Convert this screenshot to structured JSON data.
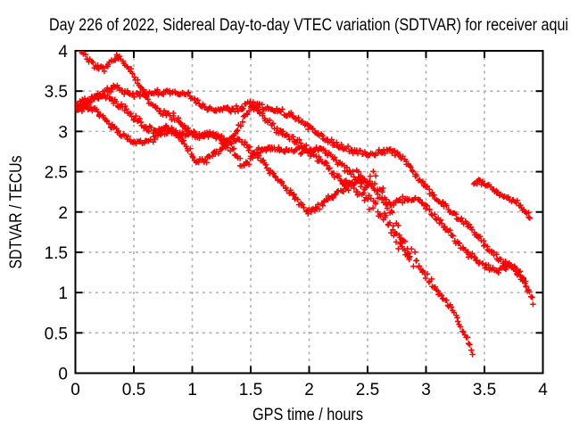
{
  "title": "Day 226 of 2022, Sidereal Day-to-day VTEC variation (SDTVAR) for receiver aqui",
  "colors": {
    "series": "#ff0000",
    "grid": "#b0b0b0",
    "frame": "#000000",
    "background": "#ffffff",
    "text": "#000000"
  },
  "chart_data": {
    "type": "scatter",
    "marker": "+",
    "title": "Day 226 of 2022, Sidereal Day-to-day VTEC variation (SDTVAR) for receiver aqui",
    "xlabel": "GPS time / hours",
    "ylabel": "SDTVAR / TECUs",
    "xlim": [
      0,
      4
    ],
    "ylim": [
      0,
      4
    ],
    "xticks": [
      0,
      0.5,
      1,
      1.5,
      2,
      2.5,
      3,
      3.5,
      4
    ],
    "yticks": [
      0,
      0.5,
      1,
      1.5,
      2,
      2.5,
      3,
      3.5,
      4
    ],
    "grid": true,
    "legend": "none",
    "series_color": "#ff0000",
    "series": [
      {
        "name": "trace-1",
        "noise": 0.03,
        "noise_extra": {
          "from": 2.36,
          "to": 2.95,
          "amp": 0.05
        },
        "seed": 42,
        "points": [
          [
            0.03,
            4.02
          ],
          [
            0.08,
            3.95
          ],
          [
            0.13,
            3.88
          ],
          [
            0.18,
            3.81
          ],
          [
            0.24,
            3.78
          ],
          [
            0.3,
            3.85
          ],
          [
            0.36,
            3.93
          ],
          [
            0.42,
            3.84
          ],
          [
            0.48,
            3.74
          ],
          [
            0.54,
            3.6
          ],
          [
            0.6,
            3.46
          ],
          [
            0.66,
            3.32
          ],
          [
            0.72,
            3.24
          ],
          [
            0.78,
            3.2
          ],
          [
            0.84,
            3.19
          ],
          [
            0.9,
            3.11
          ],
          [
            0.96,
            3.03
          ],
          [
            1.02,
            2.97
          ],
          [
            1.08,
            2.94
          ],
          [
            1.14,
            2.96
          ],
          [
            1.2,
            2.94
          ],
          [
            1.26,
            2.9
          ],
          [
            1.32,
            2.82
          ],
          [
            1.38,
            2.7
          ],
          [
            1.44,
            2.56
          ],
          [
            1.5,
            2.66
          ],
          [
            1.56,
            2.76
          ],
          [
            1.62,
            2.8
          ],
          [
            1.7,
            2.79
          ],
          [
            1.78,
            2.77
          ],
          [
            1.86,
            2.75
          ],
          [
            1.94,
            2.76
          ],
          [
            2.02,
            2.77
          ],
          [
            2.1,
            2.78
          ],
          [
            2.18,
            2.71
          ],
          [
            2.26,
            2.6
          ],
          [
            2.34,
            2.5
          ],
          [
            2.42,
            2.43
          ],
          [
            2.48,
            2.39
          ],
          [
            2.54,
            2.41
          ],
          [
            2.6,
            2.3
          ],
          [
            2.66,
            2.12
          ],
          [
            2.72,
            1.92
          ],
          [
            2.78,
            1.7
          ],
          [
            2.84,
            1.52
          ],
          [
            2.9,
            1.4
          ],
          [
            2.96,
            1.28
          ],
          [
            3.02,
            1.17
          ],
          [
            3.08,
            1.05
          ],
          [
            3.14,
            0.94
          ],
          [
            3.2,
            0.82
          ],
          [
            3.26,
            0.7
          ],
          [
            3.31,
            0.55
          ],
          [
            3.35,
            0.42
          ],
          [
            3.38,
            0.32
          ],
          [
            3.4,
            0.24
          ]
        ]
      },
      {
        "name": "trace-2",
        "noise": 0.026,
        "seed": 43,
        "points": [
          [
            0.0,
            3.3
          ],
          [
            0.06,
            3.33
          ],
          [
            0.12,
            3.37
          ],
          [
            0.18,
            3.42
          ],
          [
            0.24,
            3.47
          ],
          [
            0.3,
            3.52
          ],
          [
            0.35,
            3.56
          ],
          [
            0.4,
            3.51
          ],
          [
            0.46,
            3.46
          ],
          [
            0.52,
            3.44
          ],
          [
            0.6,
            3.46
          ],
          [
            0.68,
            3.48
          ],
          [
            0.76,
            3.49
          ],
          [
            0.84,
            3.48
          ],
          [
            0.92,
            3.47
          ],
          [
            0.98,
            3.44
          ],
          [
            1.04,
            3.36
          ],
          [
            1.1,
            3.29
          ],
          [
            1.16,
            3.27
          ],
          [
            1.24,
            3.27
          ],
          [
            1.3,
            3.29
          ],
          [
            1.36,
            3.27
          ],
          [
            1.42,
            3.3
          ],
          [
            1.48,
            3.35
          ],
          [
            1.54,
            3.33
          ],
          [
            1.6,
            3.3
          ],
          [
            1.68,
            3.27
          ],
          [
            1.76,
            3.24
          ],
          [
            1.84,
            3.21
          ],
          [
            1.92,
            3.13
          ],
          [
            2.0,
            3.04
          ],
          [
            2.08,
            2.96
          ],
          [
            2.16,
            2.89
          ],
          [
            2.24,
            2.84
          ],
          [
            2.32,
            2.79
          ],
          [
            2.4,
            2.75
          ],
          [
            2.48,
            2.72
          ],
          [
            2.56,
            2.72
          ],
          [
            2.64,
            2.74
          ],
          [
            2.7,
            2.76
          ],
          [
            2.76,
            2.73
          ],
          [
            2.82,
            2.63
          ],
          [
            2.88,
            2.52
          ],
          [
            2.95,
            2.38
          ],
          [
            3.02,
            2.28
          ],
          [
            3.1,
            2.15
          ],
          [
            3.18,
            2.05
          ],
          [
            3.26,
            1.95
          ],
          [
            3.34,
            1.87
          ],
          [
            3.42,
            1.74
          ],
          [
            3.48,
            1.64
          ],
          [
            3.54,
            1.53
          ],
          [
            3.6,
            1.44
          ],
          [
            3.66,
            1.37
          ],
          [
            3.72,
            1.35
          ],
          [
            3.76,
            1.31
          ],
          [
            3.8,
            1.25
          ],
          [
            3.84,
            1.15
          ],
          [
            3.88,
            1.02
          ],
          [
            3.92,
            0.84
          ]
        ]
      },
      {
        "name": "trace-3",
        "noise": 0.028,
        "seed": 44,
        "points": [
          [
            0.0,
            3.26
          ],
          [
            0.06,
            3.28
          ],
          [
            0.12,
            3.3
          ],
          [
            0.18,
            3.26
          ],
          [
            0.24,
            3.17
          ],
          [
            0.3,
            3.08
          ],
          [
            0.37,
            2.99
          ],
          [
            0.44,
            2.92
          ],
          [
            0.51,
            2.87
          ],
          [
            0.58,
            2.86
          ],
          [
            0.65,
            2.9
          ],
          [
            0.72,
            2.96
          ],
          [
            0.8,
            3.0
          ],
          [
            0.88,
            2.98
          ],
          [
            0.96,
            2.96
          ],
          [
            1.04,
            2.95
          ],
          [
            1.12,
            2.96
          ],
          [
            1.2,
            2.94
          ],
          [
            1.27,
            2.88
          ],
          [
            1.33,
            2.85
          ],
          [
            1.39,
            2.9
          ],
          [
            1.45,
            2.85
          ],
          [
            1.51,
            2.77
          ],
          [
            1.58,
            2.66
          ],
          [
            1.65,
            2.54
          ],
          [
            1.72,
            2.44
          ],
          [
            1.79,
            2.32
          ],
          [
            1.86,
            2.22
          ],
          [
            1.93,
            2.08
          ],
          [
            1.99,
            2.01
          ],
          [
            2.05,
            2.04
          ],
          [
            2.12,
            2.11
          ],
          [
            2.19,
            2.19
          ],
          [
            2.26,
            2.27
          ],
          [
            2.33,
            2.33
          ],
          [
            2.4,
            2.38
          ],
          [
            2.46,
            2.4
          ],
          [
            2.52,
            2.34
          ],
          [
            2.58,
            2.22
          ],
          [
            2.64,
            2.12
          ],
          [
            2.7,
            2.1
          ],
          [
            2.76,
            2.13
          ],
          [
            2.82,
            2.16
          ],
          [
            2.88,
            2.16
          ],
          [
            2.94,
            2.14
          ],
          [
            3.0,
            2.07
          ],
          [
            3.06,
            1.97
          ],
          [
            3.13,
            1.85
          ],
          [
            3.2,
            1.74
          ],
          [
            3.28,
            1.61
          ],
          [
            3.36,
            1.49
          ],
          [
            3.44,
            1.39
          ],
          [
            3.5,
            1.33
          ],
          [
            3.56,
            1.28
          ],
          [
            3.62,
            1.26
          ],
          [
            3.68,
            1.31
          ],
          [
            3.72,
            1.33
          ],
          [
            3.76,
            1.29
          ],
          [
            3.8,
            1.22
          ],
          [
            3.84,
            1.14
          ],
          [
            3.88,
            1.04
          ]
        ]
      },
      {
        "name": "trace-4",
        "noise": 0.03,
        "noise_extra": {
          "from": 2.3,
          "to": 2.87,
          "amp": 0.04
        },
        "seed": 45,
        "points": [
          [
            0.0,
            3.34
          ],
          [
            0.07,
            3.37
          ],
          [
            0.14,
            3.41
          ],
          [
            0.21,
            3.44
          ],
          [
            0.28,
            3.42
          ],
          [
            0.35,
            3.36
          ],
          [
            0.42,
            3.28
          ],
          [
            0.49,
            3.19
          ],
          [
            0.56,
            3.1
          ],
          [
            0.63,
            3.03
          ],
          [
            0.7,
            3.01
          ],
          [
            0.77,
            3.05
          ],
          [
            0.83,
            3.02
          ],
          [
            0.89,
            2.93
          ],
          [
            0.95,
            2.81
          ],
          [
            1.0,
            2.7
          ],
          [
            1.05,
            2.62
          ],
          [
            1.1,
            2.63
          ],
          [
            1.16,
            2.7
          ],
          [
            1.22,
            2.77
          ],
          [
            1.28,
            2.83
          ],
          [
            1.34,
            2.92
          ],
          [
            1.39,
            3.03
          ],
          [
            1.44,
            3.16
          ],
          [
            1.49,
            3.28
          ],
          [
            1.54,
            3.3
          ],
          [
            1.6,
            3.2
          ],
          [
            1.66,
            3.1
          ],
          [
            1.73,
            3.02
          ],
          [
            1.8,
            2.97
          ],
          [
            1.87,
            2.91
          ],
          [
            1.94,
            2.83
          ],
          [
            2.01,
            2.74
          ],
          [
            2.08,
            2.66
          ],
          [
            2.16,
            2.55
          ],
          [
            2.24,
            2.45
          ],
          [
            2.32,
            2.34
          ],
          [
            2.4,
            2.25
          ],
          [
            2.48,
            2.19
          ],
          [
            2.54,
            2.1
          ],
          [
            2.6,
            1.99
          ],
          [
            2.66,
            1.87
          ],
          [
            2.72,
            1.74
          ],
          [
            2.78,
            1.6
          ],
          [
            2.83,
            1.5
          ],
          [
            2.87,
            1.44
          ]
        ]
      },
      {
        "name": "trace-5",
        "noise": 0.022,
        "seed": 46,
        "points": [
          [
            3.41,
            2.35
          ],
          [
            3.45,
            2.38
          ],
          [
            3.5,
            2.35
          ],
          [
            3.55,
            2.3
          ],
          [
            3.6,
            2.25
          ],
          [
            3.65,
            2.2
          ],
          [
            3.7,
            2.17
          ],
          [
            3.74,
            2.15
          ],
          [
            3.78,
            2.11
          ],
          [
            3.82,
            2.06
          ],
          [
            3.86,
            1.98
          ],
          [
            3.9,
            1.91
          ]
        ]
      }
    ]
  }
}
